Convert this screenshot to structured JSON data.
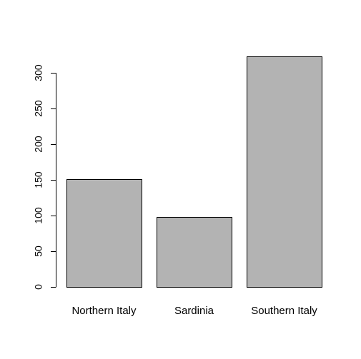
{
  "chart_data": {
    "type": "bar",
    "title": "",
    "xlabel": "",
    "ylabel": "",
    "categories": [
      "Northern Italy",
      "Sardinia",
      "Southern Italy"
    ],
    "values": [
      151,
      98,
      323
    ],
    "ylim": [
      0,
      300
    ],
    "yticks": [
      0,
      50,
      100,
      150,
      200,
      250,
      300
    ],
    "bar_color": "#b3b3b3",
    "bar_border_color": "#000000",
    "grid": false,
    "legend": "none"
  }
}
